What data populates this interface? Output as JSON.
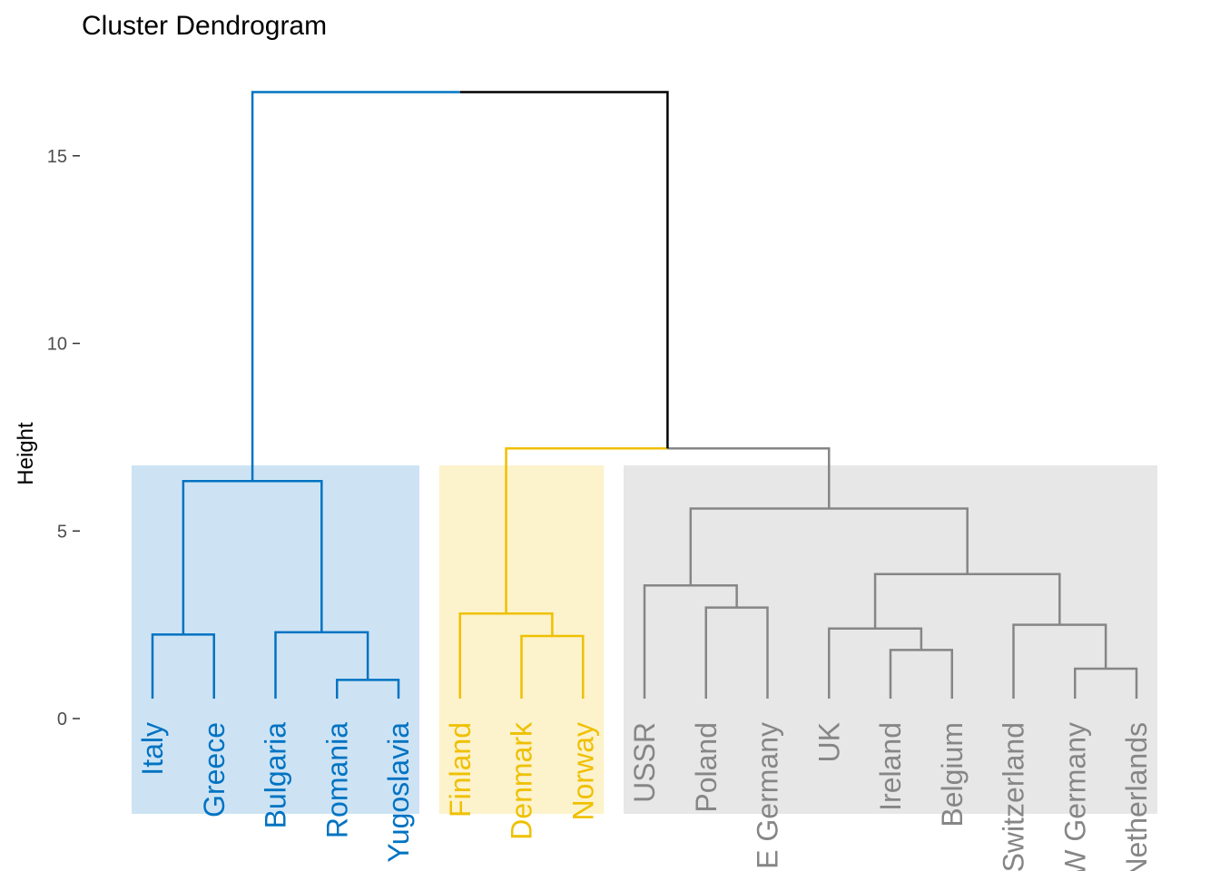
{
  "chart_data": {
    "type": "dendrogram",
    "title": "Cluster Dendrogram",
    "xlabel": "",
    "ylabel": "Height",
    "ylim": [
      -2.5,
      16.7
    ],
    "yticks": [
      0,
      5,
      10,
      15
    ],
    "grid": false,
    "leaves": [
      "Italy",
      "Greece",
      "Bulgaria",
      "Romania",
      "Yugoslavia",
      "Finland",
      "Denmark",
      "Norway",
      "USSR",
      "Poland",
      "E Germany",
      "UK",
      "Ireland",
      "Belgium",
      "Switzerland",
      "W Germany",
      "Netherlands"
    ],
    "leaf_colors": [
      "#0073C2",
      "#0073C2",
      "#0073C2",
      "#0073C2",
      "#0073C2",
      "#EFC000",
      "#EFC000",
      "#EFC000",
      "#868686",
      "#868686",
      "#868686",
      "#868686",
      "#868686",
      "#868686",
      "#868686",
      "#868686",
      "#868686"
    ],
    "clusters": [
      {
        "leaf_range": [
          0,
          4
        ],
        "color": "#0073C2",
        "fill": "#CDE3F4"
      },
      {
        "leaf_range": [
          5,
          7
        ],
        "color": "#EFC000",
        "fill": "#FCF2CC"
      },
      {
        "leaf_range": [
          8,
          16
        ],
        "color": "#868686",
        "fill": "#E7E7E7"
      }
    ],
    "root_color": "#000000",
    "merges": [
      {
        "left": [
          "leaf",
          3
        ],
        "right": [
          "leaf",
          4
        ],
        "height": 1.03,
        "color": "#0073C2"
      },
      {
        "left": [
          "leaf",
          2
        ],
        "right": [
          "merge",
          0
        ],
        "height": 2.3,
        "color": "#0073C2"
      },
      {
        "left": [
          "leaf",
          0
        ],
        "right": [
          "leaf",
          1
        ],
        "height": 2.24,
        "color": "#0073C2"
      },
      {
        "left": [
          "merge",
          2
        ],
        "right": [
          "merge",
          1
        ],
        "height": 6.33,
        "color": "#0073C2"
      },
      {
        "left": [
          "leaf",
          6
        ],
        "right": [
          "leaf",
          7
        ],
        "height": 2.2,
        "color": "#EFC000"
      },
      {
        "left": [
          "leaf",
          5
        ],
        "right": [
          "merge",
          4
        ],
        "height": 2.8,
        "color": "#EFC000"
      },
      {
        "left": [
          "leaf",
          9
        ],
        "right": [
          "leaf",
          10
        ],
        "height": 2.96,
        "color": "#868686"
      },
      {
        "left": [
          "leaf",
          8
        ],
        "right": [
          "merge",
          6
        ],
        "height": 3.55,
        "color": "#868686"
      },
      {
        "left": [
          "leaf",
          12
        ],
        "right": [
          "leaf",
          13
        ],
        "height": 1.83,
        "color": "#868686"
      },
      {
        "left": [
          "leaf",
          11
        ],
        "right": [
          "merge",
          8
        ],
        "height": 2.4,
        "color": "#868686"
      },
      {
        "left": [
          "leaf",
          15
        ],
        "right": [
          "leaf",
          16
        ],
        "height": 1.33,
        "color": "#868686"
      },
      {
        "left": [
          "leaf",
          14
        ],
        "right": [
          "merge",
          10
        ],
        "height": 2.5,
        "color": "#868686"
      },
      {
        "left": [
          "merge",
          9
        ],
        "right": [
          "merge",
          11
        ],
        "height": 3.85,
        "color": "#868686"
      },
      {
        "left": [
          "merge",
          7
        ],
        "right": [
          "merge",
          12
        ],
        "height": 5.6,
        "color": "#868686"
      },
      {
        "left": [
          "merge",
          5
        ],
        "right": [
          "merge",
          13
        ],
        "height": 7.2,
        "color": "#868686"
      },
      {
        "left": [
          "merge",
          3
        ],
        "right": [
          "merge",
          14
        ],
        "height": 16.7,
        "color": "#000000"
      }
    ]
  }
}
